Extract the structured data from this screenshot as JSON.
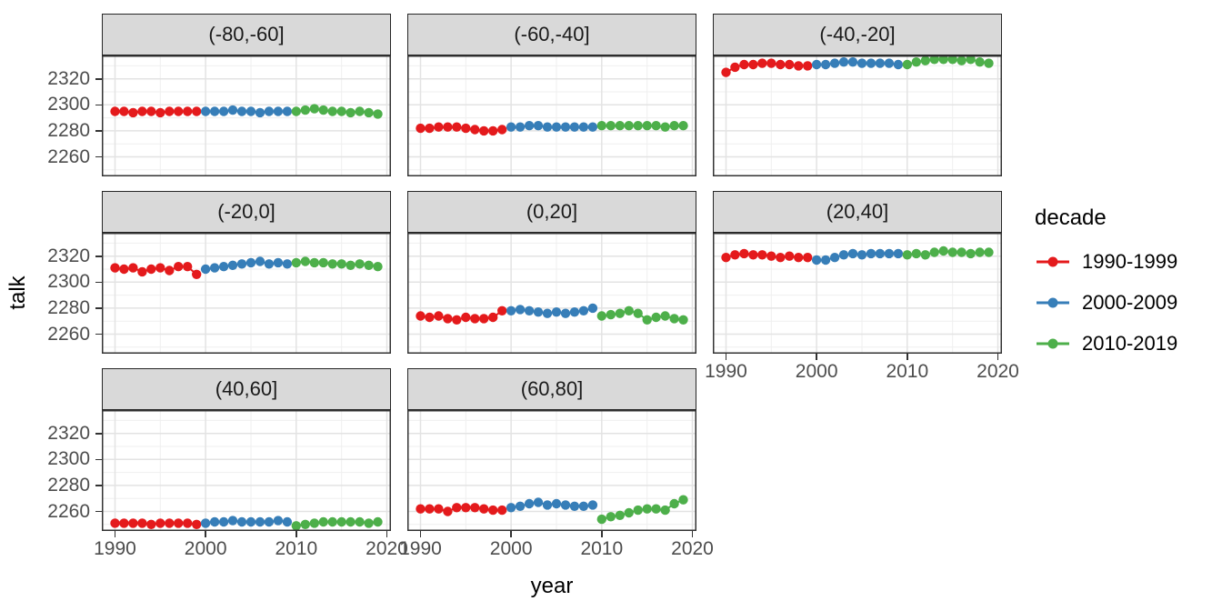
{
  "figure": {
    "x_axis_title": "year",
    "y_axis_title": "talk",
    "legend": {
      "title": "decade",
      "entries": [
        {
          "label": "1990-1999",
          "color": "#E41A1C"
        },
        {
          "label": "2000-2009",
          "color": "#377EB8"
        },
        {
          "label": "2010-2019",
          "color": "#4DAF4A"
        }
      ]
    }
  },
  "chart_data": {
    "type": "line",
    "title": "",
    "xlabel": "year",
    "ylabel": "talk",
    "legend_title": "decade",
    "legend_position": "right",
    "grid": true,
    "xlim": [
      1988.55,
      2020.45
    ],
    "ylim": [
      2245,
      2338
    ],
    "x_ticks": [
      1990,
      2000,
      2010,
      2020
    ],
    "x_minor_ticks": [
      1995,
      2005,
      2015
    ],
    "y_ticks": [
      2260,
      2280,
      2300,
      2320
    ],
    "y_minor_ticks": [
      2250,
      2270,
      2290,
      2310,
      2330
    ],
    "decades": [
      {
        "name": "1990-1999",
        "color": "#E41A1C",
        "start_year": 1990
      },
      {
        "name": "2000-2009",
        "color": "#377EB8",
        "start_year": 2000
      },
      {
        "name": "2010-2019",
        "color": "#4DAF4A",
        "start_year": 2010
      }
    ],
    "facets": [
      {
        "label": "(-80,-60]",
        "series": {
          "1990-1999": [
            2295,
            2295,
            2294,
            2295,
            2295,
            2294,
            2295,
            2295,
            2295,
            2295
          ],
          "2000-2009": [
            2295,
            2295,
            2295,
            2296,
            2295,
            2295,
            2294,
            2295,
            2295,
            2295
          ],
          "2010-2019": [
            2295,
            2296,
            2297,
            2296,
            2295,
            2295,
            2294,
            2295,
            2294,
            2293
          ]
        }
      },
      {
        "label": "(-60,-40]",
        "series": {
          "1990-1999": [
            2282,
            2282,
            2283,
            2283,
            2283,
            2282,
            2281,
            2280,
            2280,
            2281
          ],
          "2000-2009": [
            2283,
            2283,
            2284,
            2284,
            2283,
            2283,
            2283,
            2283,
            2283,
            2283
          ],
          "2010-2019": [
            2284,
            2284,
            2284,
            2284,
            2284,
            2284,
            2284,
            2283,
            2284,
            2284
          ]
        }
      },
      {
        "label": "(-40,-20]",
        "series": {
          "1990-1999": [
            2325,
            2329,
            2331,
            2331,
            2332,
            2332,
            2331,
            2331,
            2330,
            2330
          ],
          "2000-2009": [
            2331,
            2331,
            2332,
            2333,
            2333,
            2332,
            2332,
            2332,
            2332,
            2331
          ],
          "2010-2019": [
            2331,
            2333,
            2334,
            2335,
            2335,
            2335,
            2334,
            2335,
            2333,
            2332
          ]
        }
      },
      {
        "label": "(-20,0]",
        "series": {
          "1990-1999": [
            2311,
            2310,
            2311,
            2308,
            2310,
            2311,
            2309,
            2312,
            2312,
            2306
          ],
          "2000-2009": [
            2310,
            2311,
            2312,
            2313,
            2314,
            2315,
            2316,
            2314,
            2315,
            2314
          ],
          "2010-2019": [
            2315,
            2316,
            2315,
            2315,
            2314,
            2314,
            2313,
            2314,
            2313,
            2312
          ]
        }
      },
      {
        "label": "(0,20]",
        "series": {
          "1990-1999": [
            2274,
            2273,
            2274,
            2272,
            2271,
            2273,
            2272,
            2272,
            2273,
            2278
          ],
          "2000-2009": [
            2278,
            2279,
            2278,
            2277,
            2276,
            2277,
            2276,
            2277,
            2278,
            2280
          ],
          "2010-2019": [
            2274,
            2275,
            2276,
            2278,
            2276,
            2271,
            2273,
            2274,
            2272,
            2271
          ]
        }
      },
      {
        "label": "(20,40]",
        "series": {
          "1990-1999": [
            2319,
            2321,
            2322,
            2321,
            2321,
            2320,
            2319,
            2320,
            2319,
            2319
          ],
          "2000-2009": [
            2317,
            2317,
            2319,
            2321,
            2322,
            2321,
            2322,
            2322,
            2322,
            2322
          ],
          "2010-2019": [
            2321,
            2322,
            2321,
            2323,
            2324,
            2323,
            2323,
            2322,
            2323,
            2323
          ]
        }
      },
      {
        "label": "(40,60]",
        "series": {
          "1990-1999": [
            2251,
            2251,
            2251,
            2251,
            2250,
            2251,
            2251,
            2251,
            2251,
            2250
          ],
          "2000-2009": [
            2251,
            2252,
            2252,
            2253,
            2252,
            2252,
            2252,
            2252,
            2253,
            2252
          ],
          "2010-2019": [
            2249,
            2250,
            2251,
            2252,
            2252,
            2252,
            2252,
            2252,
            2251,
            2252
          ]
        }
      },
      {
        "label": "(60,80]",
        "series": {
          "1990-1999": [
            2262,
            2262,
            2262,
            2260,
            2263,
            2263,
            2263,
            2262,
            2261,
            2261
          ],
          "2000-2009": [
            2263,
            2264,
            2266,
            2267,
            2265,
            2266,
            2265,
            2264,
            2264,
            2265
          ],
          "2010-2019": [
            2254,
            2256,
            2257,
            2259,
            2261,
            2262,
            2262,
            2261,
            2266,
            2269
          ]
        }
      }
    ]
  }
}
